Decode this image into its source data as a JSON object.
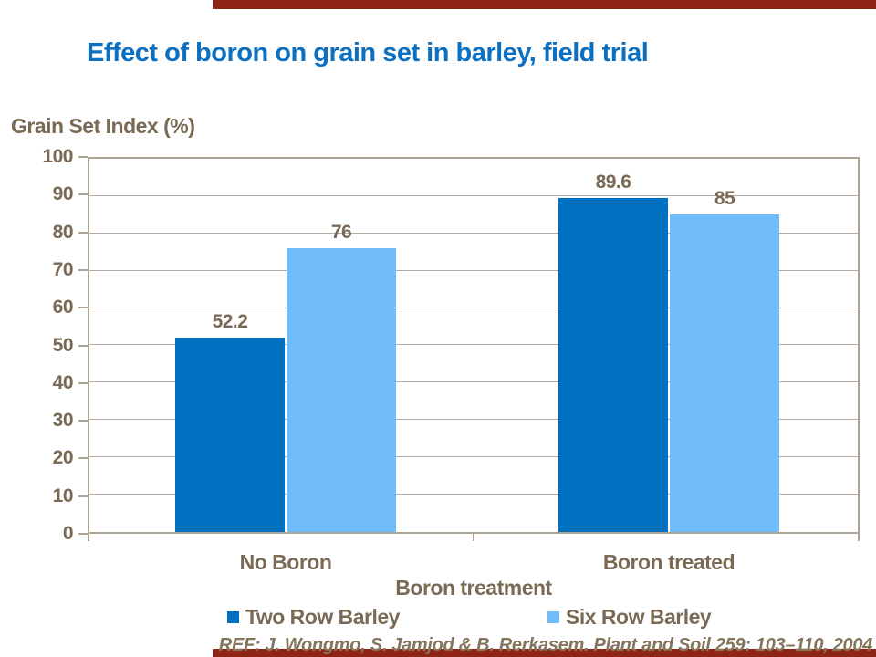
{
  "page": {
    "background": "#FFFFFF",
    "accent_bar_color": "#8E2416"
  },
  "title": {
    "text": "Effect of boron on grain set in barley, field trial",
    "color": "#0C70C2"
  },
  "chart_data": {
    "type": "bar",
    "title": "Effect of boron on grain set in barley, field trial",
    "ylabel": "Grain Set Index (%)",
    "xlabel": "Boron treatment",
    "categories": [
      "No Boron",
      "Boron treated"
    ],
    "series": [
      {
        "name": "Two Row Barley",
        "color": "#0070C0",
        "values": [
          52.2,
          89.6
        ]
      },
      {
        "name": "Six Row Barley",
        "color": "#6FBCF8",
        "values": [
          76,
          85
        ]
      }
    ],
    "value_labels": [
      "52.2",
      "76",
      "89.6",
      "85"
    ],
    "ylim": [
      0,
      100
    ],
    "yticks": [
      0,
      10,
      20,
      30,
      40,
      50,
      60,
      70,
      80,
      90,
      100
    ],
    "grid": "horizontal",
    "legend_position": "bottom"
  },
  "footer": {
    "reference": "REF: J. Wongmo, S. Jamjod & B. Rerkasem. Plant and Soil 259: 103–110, 2004",
    "color": "#85755C"
  },
  "colors": {
    "text_brown": "#7A6A55",
    "axis_line": "#AFA395",
    "gridline": "#B3AB9F"
  }
}
